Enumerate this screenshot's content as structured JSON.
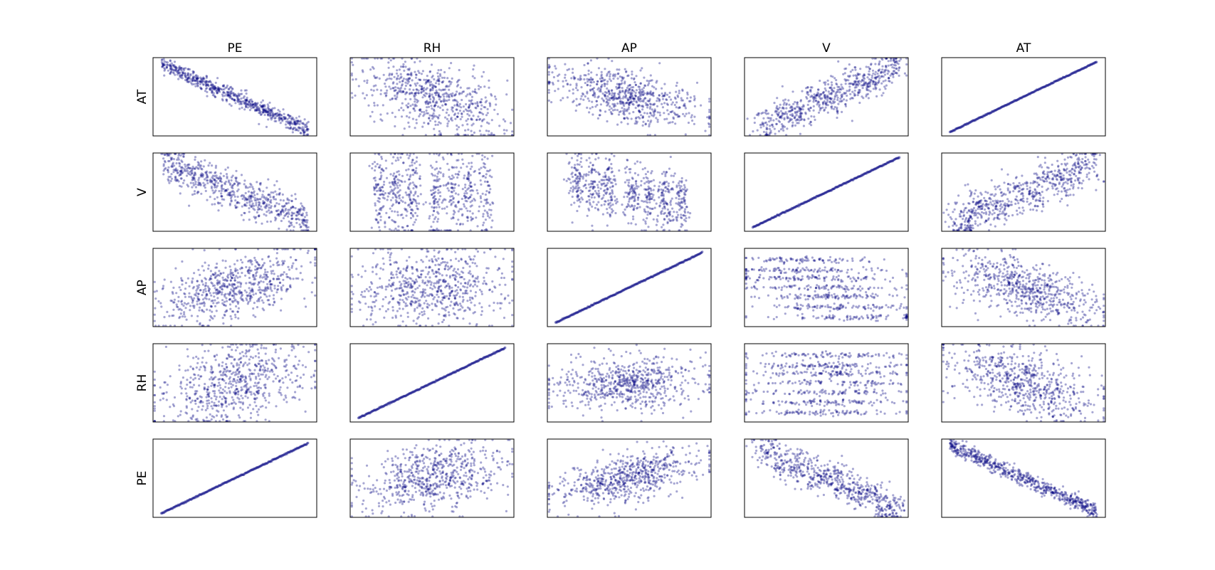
{
  "chart_data": {
    "type": "scatter",
    "subtype": "scatter-matrix",
    "columns": [
      "PE",
      "RH",
      "AP",
      "V",
      "AT"
    ],
    "rows": [
      "AT",
      "V",
      "AP",
      "RH",
      "PE"
    ],
    "grid": false,
    "axes_ticks": false,
    "point_color": "#000080",
    "point_alpha": 0.35,
    "cells": [
      [
        {
          "col": "PE",
          "row": "AT",
          "pattern": "linear",
          "slope": -0.95,
          "spread": 0.05
        },
        {
          "col": "RH",
          "row": "AT",
          "pattern": "cloud",
          "slope": -0.55,
          "spread": 0.22
        },
        {
          "col": "AP",
          "row": "AT",
          "pattern": "cloud",
          "slope": -0.45,
          "spread": 0.16
        },
        {
          "col": "V",
          "row": "AT",
          "pattern": "cluster",
          "slope": 0.85,
          "spread": 0.1
        },
        {
          "col": "AT",
          "row": "AT",
          "pattern": "identity",
          "slope": 1.0,
          "spread": 0.0
        }
      ],
      [
        {
          "col": "PE",
          "row": "V",
          "pattern": "linear",
          "slope": -0.85,
          "spread": 0.12
        },
        {
          "col": "RH",
          "row": "V",
          "pattern": "stripes",
          "slope": -0.1,
          "spread": 0.28
        },
        {
          "col": "AP",
          "row": "V",
          "pattern": "stripes",
          "slope": -0.4,
          "spread": 0.2
        },
        {
          "col": "V",
          "row": "V",
          "pattern": "identity",
          "slope": 1.0,
          "spread": 0.0
        },
        {
          "col": "AT",
          "row": "V",
          "pattern": "cluster",
          "slope": 0.8,
          "spread": 0.12
        }
      ],
      [
        {
          "col": "PE",
          "row": "AP",
          "pattern": "cloud",
          "slope": 0.55,
          "spread": 0.2
        },
        {
          "col": "RH",
          "row": "AP",
          "pattern": "cloud",
          "slope": 0.1,
          "spread": 0.24
        },
        {
          "col": "AP",
          "row": "AP",
          "pattern": "identity",
          "slope": 1.0,
          "spread": 0.0
        },
        {
          "col": "V",
          "row": "AP",
          "pattern": "bands",
          "slope": -0.5,
          "spread": 0.25
        },
        {
          "col": "AT",
          "row": "AP",
          "pattern": "cloud",
          "slope": -0.55,
          "spread": 0.18
        }
      ],
      [
        {
          "col": "PE",
          "row": "RH",
          "pattern": "cloud",
          "slope": 0.45,
          "spread": 0.25
        },
        {
          "col": "RH",
          "row": "RH",
          "pattern": "identity",
          "slope": 1.0,
          "spread": 0.0
        },
        {
          "col": "AP",
          "row": "RH",
          "pattern": "cloud",
          "slope": 0.1,
          "spread": 0.16
        },
        {
          "col": "V",
          "row": "RH",
          "pattern": "bands",
          "slope": 0.0,
          "spread": 0.22
        },
        {
          "col": "AT",
          "row": "RH",
          "pattern": "cloud",
          "slope": -0.55,
          "spread": 0.2
        }
      ],
      [
        {
          "col": "PE",
          "row": "PE",
          "pattern": "identity",
          "slope": 1.0,
          "spread": 0.0
        },
        {
          "col": "RH",
          "row": "PE",
          "pattern": "cloud",
          "slope": 0.35,
          "spread": 0.22
        },
        {
          "col": "AP",
          "row": "PE",
          "pattern": "cloud",
          "slope": 0.45,
          "spread": 0.15
        },
        {
          "col": "V",
          "row": "PE",
          "pattern": "cluster",
          "slope": -0.85,
          "spread": 0.1
        },
        {
          "col": "AT",
          "row": "PE",
          "pattern": "linear",
          "slope": -0.95,
          "spread": 0.05
        }
      ]
    ]
  }
}
